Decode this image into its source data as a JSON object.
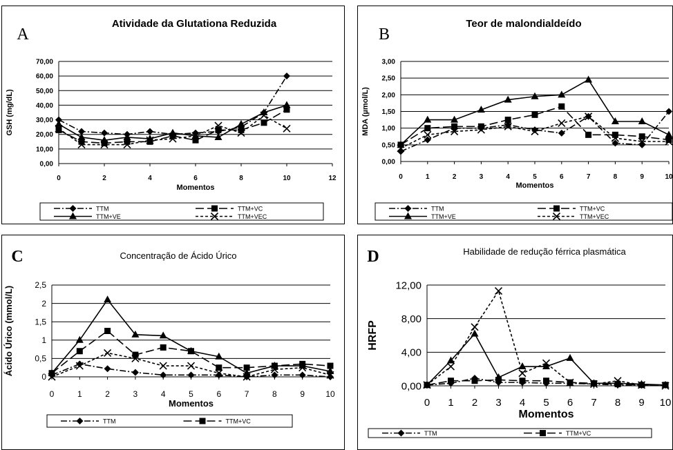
{
  "chart_data": [
    {
      "id": "panel-a",
      "type": "line",
      "letter": "A",
      "title": "Atividade da Glutationa Reduzida",
      "xlabel": "Momentos",
      "ylabel": "GSH (mg/dL)",
      "xlim": [
        0,
        12
      ],
      "x_ticks": [
        "0",
        "2",
        "4",
        "6",
        "8",
        "10",
        "12"
      ],
      "ylim": [
        0,
        70
      ],
      "y_ticks": [
        "0,00",
        "10,00",
        "20,00",
        "30,00",
        "40,00",
        "50,00",
        "60,00",
        "70,00"
      ],
      "grid": "horizontal",
      "legend_position": "bottom",
      "x": [
        0,
        1,
        2,
        3,
        4,
        5,
        6,
        7,
        8,
        9,
        10
      ],
      "series": [
        {
          "name": "TTM",
          "marker": "diamond",
          "dash": "dashdot",
          "values": [
            30,
            22,
            21,
            20,
            22,
            20,
            21,
            22,
            25,
            35,
            60
          ]
        },
        {
          "name": "TTM+VC",
          "marker": "square",
          "dash": "longdash",
          "values": [
            23,
            15,
            14,
            15,
            15,
            19,
            16,
            23,
            23,
            28,
            37
          ]
        },
        {
          "name": "TTM+VE",
          "marker": "triangle",
          "dash": "solid",
          "values": [
            27,
            18,
            16,
            18,
            17,
            21,
            19,
            18,
            27,
            35,
            40
          ]
        },
        {
          "name": "TTM+VEC",
          "marker": "x",
          "dash": "dashed",
          "values": [
            24,
            13,
            13,
            13,
            16,
            17,
            19,
            26,
            21,
            33,
            24
          ]
        }
      ]
    },
    {
      "id": "panel-b",
      "type": "line",
      "letter": "B",
      "title": "Teor de malondialdeído",
      "xlabel": "Momentos",
      "ylabel": "MDA (µmol/L)",
      "xlim": [
        0,
        10
      ],
      "x_ticks": [
        "0",
        "1",
        "2",
        "3",
        "4",
        "5",
        "6",
        "7",
        "8",
        "9",
        "10"
      ],
      "ylim": [
        0,
        3
      ],
      "y_ticks": [
        "0,00",
        "0,50",
        "1,00",
        "1,50",
        "2,00",
        "2,50",
        "3,00"
      ],
      "grid": "horizontal",
      "legend_position": "bottom",
      "x": [
        0,
        1,
        2,
        3,
        4,
        5,
        6,
        7,
        8,
        9,
        10
      ],
      "series": [
        {
          "name": "TTM",
          "marker": "diamond",
          "dash": "dashdot",
          "values": [
            0.3,
            0.65,
            1.0,
            1.0,
            1.1,
            0.95,
            0.85,
            1.35,
            0.55,
            0.5,
            1.5
          ]
        },
        {
          "name": "TTM+VC",
          "marker": "square",
          "dash": "longdash",
          "values": [
            0.5,
            1.0,
            1.05,
            1.05,
            1.25,
            1.4,
            1.65,
            0.8,
            0.8,
            0.75,
            0.65
          ]
        },
        {
          "name": "TTM+VE",
          "marker": "triangle",
          "dash": "solid",
          "values": [
            0.5,
            1.25,
            1.25,
            1.55,
            1.85,
            1.95,
            2.0,
            2.45,
            1.2,
            1.2,
            0.8
          ]
        },
        {
          "name": "TTM+VEC",
          "marker": "x",
          "dash": "dashed",
          "values": [
            0.4,
            0.8,
            0.9,
            0.95,
            1.05,
            0.9,
            1.15,
            1.35,
            0.7,
            0.6,
            0.6
          ]
        }
      ]
    },
    {
      "id": "panel-c",
      "type": "line",
      "letter": "C",
      "title": "Concentração de Ácido Úrico",
      "xlabel": "Momentos",
      "ylabel": "Ácido Úrico (mmol/L)",
      "xlim": [
        0,
        10
      ],
      "x_ticks": [
        "0",
        "1",
        "2",
        "3",
        "4",
        "5",
        "6",
        "7",
        "8",
        "9",
        "10"
      ],
      "ylim": [
        0,
        2.5
      ],
      "y_ticks": [
        "0",
        "0,5",
        "1",
        "1,5",
        "2",
        "2,5"
      ],
      "grid": "horizontal",
      "legend_position": "bottom",
      "x": [
        0,
        1,
        2,
        3,
        4,
        5,
        6,
        7,
        8,
        9,
        10
      ],
      "series": [
        {
          "name": "TTM",
          "marker": "diamond",
          "dash": "dashdot",
          "values": [
            0.05,
            0.35,
            0.22,
            0.12,
            0.05,
            0.05,
            0.05,
            0.0,
            0.05,
            0.05,
            0.0
          ]
        },
        {
          "name": "TTM+VC",
          "marker": "square",
          "dash": "longdash",
          "values": [
            0.1,
            0.7,
            1.25,
            0.6,
            0.8,
            0.7,
            0.25,
            0.25,
            0.3,
            0.35,
            0.3
          ]
        },
        {
          "name": "",
          "marker": "triangle",
          "dash": "solid",
          "values": [
            0.1,
            1.0,
            2.1,
            1.15,
            1.12,
            0.7,
            0.55,
            0.1,
            0.3,
            0.3,
            0.15
          ]
        },
        {
          "name": "",
          "marker": "x",
          "dash": "dashed",
          "values": [
            0.0,
            0.3,
            0.65,
            0.5,
            0.3,
            0.3,
            0.1,
            0.0,
            0.2,
            0.25,
            0.05
          ]
        }
      ]
    },
    {
      "id": "panel-d",
      "type": "line",
      "letter": "D",
      "title": "Habilidade de redução férrica plasmática",
      "xlabel": "Momentos",
      "ylabel": "HRFP",
      "xlim": [
        0,
        10
      ],
      "x_ticks": [
        "0",
        "1",
        "2",
        "3",
        "4",
        "5",
        "6",
        "7",
        "8",
        "9",
        "10"
      ],
      "ylim": [
        0,
        12
      ],
      "y_ticks": [
        "0,00",
        "4,00",
        "8,00",
        "12,00"
      ],
      "grid": "horizontal",
      "legend_position": "bottom",
      "x": [
        0,
        1,
        2,
        3,
        4,
        5,
        6,
        7,
        8,
        9,
        10
      ],
      "series": [
        {
          "name": "TTM",
          "marker": "diamond",
          "dash": "dashdot",
          "values": [
            0.1,
            0.3,
            0.9,
            0.4,
            0.4,
            0.3,
            0.3,
            0.2,
            0.1,
            0.1,
            0.1
          ]
        },
        {
          "name": "TTM+VC",
          "marker": "square",
          "dash": "longdash",
          "values": [
            0.1,
            0.6,
            0.6,
            0.7,
            0.6,
            0.6,
            0.4,
            0.3,
            0.2,
            0.1,
            0.1
          ]
        },
        {
          "name": "",
          "marker": "triangle",
          "dash": "solid",
          "values": [
            0.1,
            3.0,
            6.2,
            1.0,
            2.3,
            2.3,
            3.3,
            0.3,
            0.3,
            0.2,
            0.1
          ]
        },
        {
          "name": "",
          "marker": "x",
          "dash": "dashed",
          "values": [
            0.1,
            2.3,
            7.0,
            11.3,
            1.5,
            2.7,
            0.4,
            0.2,
            0.6,
            0.1,
            0.0
          ]
        }
      ]
    }
  ]
}
